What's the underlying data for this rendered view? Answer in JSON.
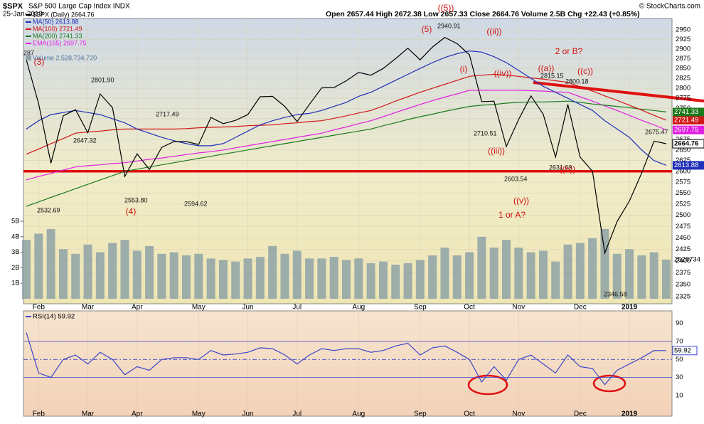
{
  "header": {
    "symbol": "$SPX",
    "name": "S&P 500 Large Cap Index INDX",
    "date": "25-Jan-2019",
    "quote": "Open 2657.44 High 2672.38 Low 2657.33 Close 2664.76 Volume 2.5B Chg +22.43 (+0.85%)",
    "credit": "© StockCharts.com"
  },
  "chart_data": [
    {
      "type": "line",
      "log_scale": true,
      "grid": true,
      "categories": [
        null,
        "Feb",
        null,
        null,
        null,
        "Mar",
        null,
        null,
        null,
        "Apr",
        null,
        null,
        null,
        null,
        "May",
        null,
        null,
        null,
        "Jun",
        null,
        null,
        null,
        "Jul",
        null,
        null,
        null,
        null,
        "Aug",
        null,
        null,
        null,
        null,
        "Sep",
        null,
        null,
        null,
        "Oct",
        null,
        null,
        null,
        "Nov",
        null,
        null,
        null,
        null,
        "Dec",
        null,
        null,
        null,
        "2019",
        null,
        null,
        null
      ],
      "series": [
        {
          "name": "$SPX (Daily) 2664.76",
          "color": "#000000",
          "values": [
            2872,
            2762,
            2619,
            2732,
            2747,
            2691,
            2786,
            2752,
            2588,
            2641,
            2604,
            2656,
            2670,
            2670,
            2663,
            2728,
            2713,
            2721,
            2735,
            2779,
            2780,
            2755,
            2718,
            2760,
            2801,
            2802,
            2819,
            2840,
            2833,
            2850,
            2875,
            2902,
            2872,
            2905,
            2930,
            2914,
            2885,
            2767,
            2768,
            2658,
            2723,
            2781,
            2736,
            2633,
            2760,
            2633,
            2600,
            2417,
            2486,
            2532,
            2596,
            2671,
            2664.76
          ]
        },
        {
          "name": "MA(50) 2613.88",
          "color": "#1f2fb8",
          "values": [
            2700,
            2720,
            2735,
            2740,
            2745,
            2740,
            2735,
            2725,
            2715,
            2700,
            2690,
            2680,
            2672,
            2665,
            2660,
            2660,
            2665,
            2680,
            2695,
            2710,
            2720,
            2728,
            2735,
            2738,
            2745,
            2755,
            2765,
            2780,
            2790,
            2805,
            2820,
            2835,
            2850,
            2865,
            2878,
            2888,
            2895,
            2892,
            2880,
            2865,
            2845,
            2825,
            2805,
            2790,
            2775,
            2760,
            2745,
            2720,
            2700,
            2680,
            2650,
            2625,
            2613.88
          ]
        },
        {
          "name": "MA(100) 2721.49",
          "color": "#d01818",
          "values": [
            2640,
            2652,
            2665,
            2677,
            2690,
            2693,
            2695,
            2698,
            2700,
            2700,
            2700,
            2700,
            2700,
            2701,
            2703,
            2704,
            2705,
            2706,
            2708,
            2709,
            2710,
            2713,
            2715,
            2718,
            2720,
            2726,
            2732,
            2739,
            2745,
            2756,
            2768,
            2779,
            2790,
            2800,
            2810,
            2820,
            2830,
            2833,
            2835,
            2833,
            2830,
            2826,
            2823,
            2819,
            2815,
            2804,
            2793,
            2781,
            2770,
            2758,
            2746,
            2733,
            2721.49
          ]
        },
        {
          "name": "MA(200) 2741.33",
          "color": "#1c7a1c",
          "values": [
            2520,
            2530,
            2540,
            2550,
            2560,
            2570,
            2580,
            2590,
            2600,
            2605,
            2610,
            2615,
            2620,
            2625,
            2630,
            2635,
            2640,
            2645,
            2650,
            2655,
            2660,
            2665,
            2670,
            2675,
            2680,
            2685,
            2690,
            2695,
            2700,
            2708,
            2715,
            2723,
            2730,
            2736,
            2743,
            2749,
            2755,
            2758,
            2760,
            2763,
            2765,
            2766,
            2766,
            2767,
            2768,
            2765,
            2761,
            2758,
            2755,
            2752,
            2748,
            2745,
            2741.33
          ]
        },
        {
          "name": "EMA(165) 2697.75",
          "color": "#e020e0",
          "values": [
            2580,
            2588,
            2595,
            2603,
            2610,
            2613,
            2615,
            2618,
            2620,
            2624,
            2628,
            2631,
            2635,
            2639,
            2643,
            2646,
            2650,
            2655,
            2660,
            2665,
            2670,
            2675,
            2680,
            2685,
            2690,
            2698,
            2705,
            2713,
            2720,
            2730,
            2740,
            2750,
            2760,
            2769,
            2778,
            2786,
            2795,
            2795,
            2795,
            2795,
            2795,
            2794,
            2793,
            2791,
            2790,
            2779,
            2768,
            2756,
            2745,
            2733,
            2721,
            2710,
            2697.75
          ]
        }
      ],
      "volume": {
        "name": "Volume 2,528,734,720",
        "color": "#8ea2a6",
        "tag": "2528734",
        "values": [
          3800000000,
          4200000000,
          4500000000,
          3200000000,
          2900000000,
          3500000000,
          3000000000,
          3600000000,
          3800000000,
          3100000000,
          3400000000,
          2900000000,
          3000000000,
          2800000000,
          2900000000,
          2600000000,
          2500000000,
          2400000000,
          2600000000,
          2700000000,
          3400000000,
          2900000000,
          3100000000,
          2600000000,
          2600000000,
          2700000000,
          2500000000,
          2600000000,
          2300000000,
          2400000000,
          2200000000,
          2300000000,
          2500000000,
          2800000000,
          3300000000,
          2800000000,
          3000000000,
          4000000000,
          3300000000,
          3800000000,
          3300000000,
          3000000000,
          3100000000,
          2400000000,
          3500000000,
          3600000000,
          3900000000,
          4500000000,
          2900000000,
          3200000000,
          2800000000,
          3000000000,
          2528734720
        ],
        "vlim": [
          0,
          5000000000
        ],
        "ticks": [
          {
            "value": 1000000000,
            "label": "1B"
          },
          {
            "value": 2000000000,
            "label": "2B"
          },
          {
            "value": 3000000000,
            "label": "3B"
          },
          {
            "value": 4000000000,
            "label": "4B"
          },
          {
            "value": 5000000000,
            "label": "5B"
          }
        ]
      },
      "ylim": [
        2310,
        2980
      ],
      "yticks": [
        2325,
        2350,
        2375,
        2400,
        2425,
        2450,
        2475,
        2500,
        2525,
        2550,
        2575,
        2600,
        2625,
        2650,
        2675,
        2700,
        2725,
        2750,
        2775,
        2800,
        2825,
        2850,
        2875,
        2900,
        2925,
        2950
      ],
      "hlines": [
        2600
      ],
      "annotations_black": [
        "287",
        "2801.90",
        "2647.32",
        "2532.69",
        "2717.49",
        "2553.80",
        "2594.62",
        "2940.91",
        "2710.51",
        "2603.54",
        "2815.15",
        "2800.18",
        "2631.09",
        "2675.47",
        "2346.58"
      ],
      "annotations_red": [
        "((5))",
        "(5)",
        "((ii))",
        "(i)",
        "((iv))",
        "((iii))",
        "((v))",
        "1 or A?",
        "((a))",
        "2 or B?",
        "((c))",
        "((b))",
        "(4)",
        "(3)"
      ]
    },
    {
      "type": "line",
      "series": [
        {
          "name": "RSI(14) 59.92",
          "color": "#3a46c8",
          "values": [
            80,
            35,
            30,
            50,
            55,
            45,
            58,
            50,
            33,
            42,
            38,
            50,
            52,
            52,
            50,
            60,
            55,
            56,
            58,
            63,
            62,
            55,
            45,
            55,
            62,
            60,
            62,
            62,
            58,
            60,
            65,
            68,
            55,
            63,
            65,
            58,
            50,
            25,
            42,
            27,
            50,
            55,
            45,
            35,
            55,
            42,
            40,
            22,
            38,
            45,
            52,
            60,
            59.92
          ]
        }
      ],
      "ylim": [
        -13,
        104
      ],
      "yticks": [
        10,
        30,
        50,
        70,
        90
      ],
      "levels": [
        30,
        50,
        70
      ]
    }
  ]
}
